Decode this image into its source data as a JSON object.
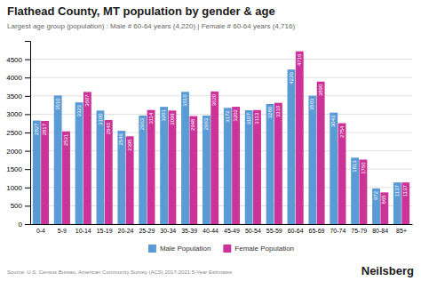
{
  "chart_data": {
    "type": "bar",
    "title": "Flathead County, MT population by gender & age",
    "subtitle": "Largest age group (population) : Male # 60-64 years (4,220) | Female # 60-64 years (4,716)",
    "categories": [
      "0-4",
      "5-9",
      "10-14",
      "15-19",
      "20-24",
      "25-29",
      "30-34",
      "35-39",
      "40-44",
      "45-49",
      "50-54",
      "55-59",
      "60-64",
      "65-69",
      "70-74",
      "75-79",
      "80-84",
      "85+"
    ],
    "series": [
      {
        "name": "Male Population",
        "color": "#5b9bd5",
        "values": [
          2827,
          3510,
          3323,
          3100,
          2546,
          2963,
          3201,
          3610,
          2963,
          3172,
          3107,
          3280,
          4220,
          3503,
          3043,
          1813,
          972,
          1137
        ]
      },
      {
        "name": "Female Population",
        "color": "#cc3399",
        "values": [
          2817,
          2531,
          3607,
          2840,
          2395,
          3114,
          3099,
          2948,
          3620,
          3202,
          3113,
          3310,
          4716,
          3890,
          2754,
          1760,
          865,
          1137
        ]
      }
    ],
    "ylim": [
      0,
      5000
    ],
    "yticks": [
      0,
      500,
      1000,
      1500,
      2000,
      2500,
      3000,
      3500,
      4000,
      4500
    ],
    "grid": true,
    "legend": "bottom",
    "data_labels": true,
    "annotations": [
      "Source: U.S. Census Bureau, American Community Survey (ACS) 2017-2021 5-Year Estimates",
      "Neilsberg"
    ]
  }
}
